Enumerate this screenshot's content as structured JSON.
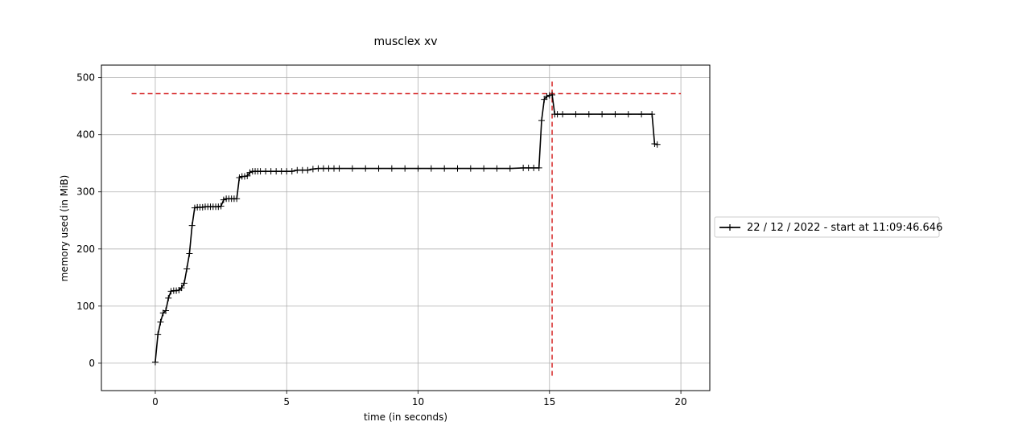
{
  "chart_data": {
    "type": "line",
    "title": "musclex xv",
    "xlabel": "time (in seconds)",
    "ylabel": "memory used (in MiB)",
    "xlim": [
      -2.05,
      21.1
    ],
    "ylim": [
      -48,
      522
    ],
    "xticks": [
      0,
      5,
      10,
      15,
      20
    ],
    "yticks": [
      0,
      100,
      200,
      300,
      400,
      500
    ],
    "grid": true,
    "legend_position": "center-right outside",
    "colors": {
      "series": "#000000",
      "marker_line": "#d62728"
    },
    "series": [
      {
        "name": "22 / 12 / 2022 - start at 11:09:46.646",
        "marker": "+",
        "points": [
          [
            0.0,
            2
          ],
          [
            0.1,
            50
          ],
          [
            0.2,
            72
          ],
          [
            0.3,
            88
          ],
          [
            0.4,
            92
          ],
          [
            0.5,
            114
          ],
          [
            0.6,
            126
          ],
          [
            0.7,
            127
          ],
          [
            0.8,
            127
          ],
          [
            0.9,
            128
          ],
          [
            1.0,
            132
          ],
          [
            1.1,
            140
          ],
          [
            1.2,
            165
          ],
          [
            1.3,
            192
          ],
          [
            1.4,
            241
          ],
          [
            1.5,
            272
          ],
          [
            1.6,
            273
          ],
          [
            1.7,
            273
          ],
          [
            1.8,
            273
          ],
          [
            1.9,
            274
          ],
          [
            2.0,
            274
          ],
          [
            2.1,
            274
          ],
          [
            2.2,
            274
          ],
          [
            2.3,
            274
          ],
          [
            2.4,
            274
          ],
          [
            2.5,
            275
          ],
          [
            2.6,
            286
          ],
          [
            2.7,
            288
          ],
          [
            2.8,
            288
          ],
          [
            2.9,
            288
          ],
          [
            3.0,
            288
          ],
          [
            3.1,
            288
          ],
          [
            3.2,
            325
          ],
          [
            3.3,
            327
          ],
          [
            3.4,
            327
          ],
          [
            3.5,
            328
          ],
          [
            3.6,
            334
          ],
          [
            3.7,
            336
          ],
          [
            3.8,
            336
          ],
          [
            3.9,
            336
          ],
          [
            4.0,
            336
          ],
          [
            4.2,
            336
          ],
          [
            4.4,
            336
          ],
          [
            4.6,
            336
          ],
          [
            4.8,
            336
          ],
          [
            5.0,
            336
          ],
          [
            5.2,
            336
          ],
          [
            5.4,
            338
          ],
          [
            5.6,
            338
          ],
          [
            5.8,
            338
          ],
          [
            6.0,
            340
          ],
          [
            6.2,
            341
          ],
          [
            6.4,
            341
          ],
          [
            6.6,
            341
          ],
          [
            6.8,
            341
          ],
          [
            7.0,
            341
          ],
          [
            7.5,
            341
          ],
          [
            8.0,
            341
          ],
          [
            8.5,
            341
          ],
          [
            9.0,
            341
          ],
          [
            9.5,
            341
          ],
          [
            10.0,
            341
          ],
          [
            10.5,
            341
          ],
          [
            11.0,
            341
          ],
          [
            11.5,
            341
          ],
          [
            12.0,
            341
          ],
          [
            12.5,
            341
          ],
          [
            13.0,
            341
          ],
          [
            13.5,
            341
          ],
          [
            14.0,
            342
          ],
          [
            14.2,
            342
          ],
          [
            14.4,
            342
          ],
          [
            14.6,
            342
          ],
          [
            14.7,
            425
          ],
          [
            14.8,
            462
          ],
          [
            14.9,
            467
          ],
          [
            15.0,
            469
          ],
          [
            15.1,
            470
          ],
          [
            15.2,
            436
          ],
          [
            15.3,
            436
          ],
          [
            15.5,
            436
          ],
          [
            16.0,
            436
          ],
          [
            16.5,
            436
          ],
          [
            17.0,
            436
          ],
          [
            17.5,
            436
          ],
          [
            18.0,
            436
          ],
          [
            18.5,
            436
          ],
          [
            18.9,
            436
          ],
          [
            19.0,
            384
          ],
          [
            19.1,
            383
          ]
        ]
      }
    ],
    "reference_lines": [
      {
        "orientation": "horizontal",
        "y": 472,
        "x_from": -0.9,
        "x_to": 20.0,
        "style": "dashed"
      },
      {
        "orientation": "vertical",
        "x": 15.1,
        "y_from": -22,
        "y_to": 496,
        "style": "dashed"
      }
    ]
  }
}
